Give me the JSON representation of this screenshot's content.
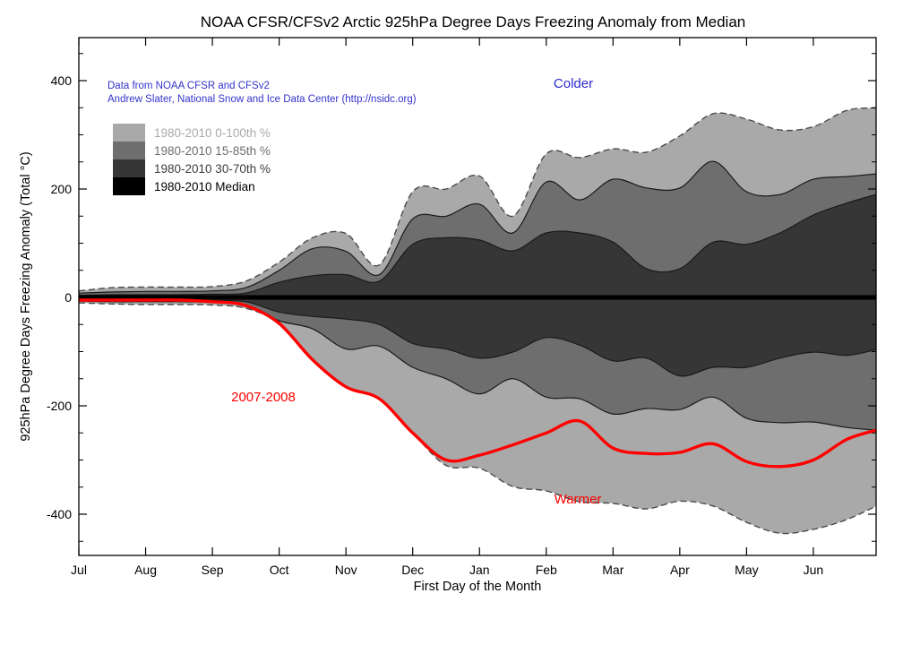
{
  "figure": {
    "title": "NOAA CFSR/CFSv2 Arctic 925hPa Degree Days Freezing Anomaly from Median",
    "credits_line1": "Data from NOAA CFSR and CFSv2",
    "credits_line2": "Andrew Slater, National Snow and Ice Data Center (http://nsidc.org)",
    "annotations": {
      "colder": "Colder",
      "warmer": "Warmer",
      "record_year": "2007-2008"
    },
    "colors": {
      "credits_text": "#3333cc",
      "colder_text": "#2c2ccc",
      "warmer_text": "#ff0000",
      "record_line": "#ff0000",
      "band_0_100": "#a9a9a9",
      "band_15_85": "#6e6e6e",
      "band_30_70": "#363636",
      "median": "#000000",
      "band_edge": "#1a1a1a",
      "outer_edge_dash": "#4a4a4a",
      "axis": "#000000"
    }
  },
  "chart_data": {
    "type": "area",
    "title": "NOAA CFSR/CFSv2 Arctic 925hPa Degree Days Freezing Anomaly from Median",
    "xlabel": "First Day of the Month",
    "ylabel": "925hPa Degree Days Freezing Anomaly (Total °C)",
    "x_ticklabels": [
      "Jul",
      "Aug",
      "Sep",
      "Oct",
      "Nov",
      "Dec",
      "Jan",
      "Feb",
      "Mar",
      "Apr",
      "May",
      "Jun"
    ],
    "x_unit": "months since Jul 1",
    "x": [
      0,
      0.5,
      1,
      1.5,
      2,
      2.5,
      3,
      3.5,
      4,
      4.5,
      5,
      5.5,
      6,
      6.5,
      7,
      7.5,
      8,
      8.5,
      9,
      9.5,
      10,
      10.5,
      11,
      11.5,
      11.94
    ],
    "xlim": [
      0,
      11.94
    ],
    "ylim": [
      -478,
      479
    ],
    "yticks": [
      400,
      200,
      0,
      -200,
      -400
    ],
    "minor_ytick_step": 50,
    "grid": false,
    "legend_position": "upper-left-inside",
    "bands": [
      {
        "name": "1980-2010 0-100th %",
        "color": "#a9a9a9",
        "label_color": "#a9a9a9",
        "edge_style": "dashed",
        "upper": [
          12,
          18,
          19,
          19,
          20,
          30,
          65,
          110,
          118,
          60,
          195,
          200,
          224,
          150,
          265,
          258,
          274,
          268,
          298,
          339,
          329,
          309,
          315,
          345,
          350
        ],
        "lower": [
          -10,
          -12,
          -13,
          -13,
          -14,
          -20,
          -48,
          -115,
          -165,
          -187,
          -250,
          -310,
          -315,
          -349,
          -357,
          -377,
          -380,
          -390,
          -376,
          -385,
          -415,
          -435,
          -428,
          -410,
          -385
        ]
      },
      {
        "name": "1980-2010 15-85th %",
        "color": "#6e6e6e",
        "label_color": "#6e6e6e",
        "edge_style": "solid",
        "upper": [
          8,
          10,
          11,
          11,
          12,
          18,
          50,
          90,
          85,
          42,
          145,
          150,
          172,
          119,
          213,
          180,
          218,
          202,
          202,
          251,
          195,
          190,
          218,
          223,
          228
        ],
        "lower": [
          -7,
          -8,
          -8,
          -8,
          -9,
          -14,
          -43,
          -58,
          -95,
          -90,
          -129,
          -150,
          -178,
          -150,
          -184,
          -187,
          -215,
          -205,
          -207,
          -184,
          -223,
          -231,
          -230,
          -240,
          -245
        ]
      },
      {
        "name": "1980-2010 30-70th %",
        "color": "#363636",
        "label_color": "#3d3d3d",
        "edge_style": "solid",
        "upper": [
          4,
          5,
          5,
          5,
          6,
          8,
          28,
          40,
          42,
          30,
          98,
          110,
          106,
          86,
          119,
          119,
          102,
          53,
          53,
          102,
          98,
          119,
          152,
          174,
          190
        ],
        "lower": [
          -4,
          -5,
          -5,
          -5,
          -6,
          -8,
          -27,
          -35,
          -40,
          -50,
          -85,
          -95,
          -112,
          -101,
          -74,
          -88,
          -117,
          -112,
          -145,
          -129,
          -129,
          -112,
          -101,
          -107,
          -96
        ]
      }
    ],
    "median": {
      "name": "1980-2010 Median",
      "color": "#000000",
      "value": 0
    },
    "record_line": {
      "name": "2007-2008",
      "color": "#ff0000",
      "values": [
        -5,
        -5,
        -5,
        -5,
        -8,
        -15,
        -48,
        -115,
        -165,
        -187,
        -250,
        -300,
        -291,
        -272,
        -250,
        -228,
        -278,
        -288,
        -286,
        -270,
        -303,
        -312,
        -300,
        -262,
        -245
      ]
    }
  }
}
